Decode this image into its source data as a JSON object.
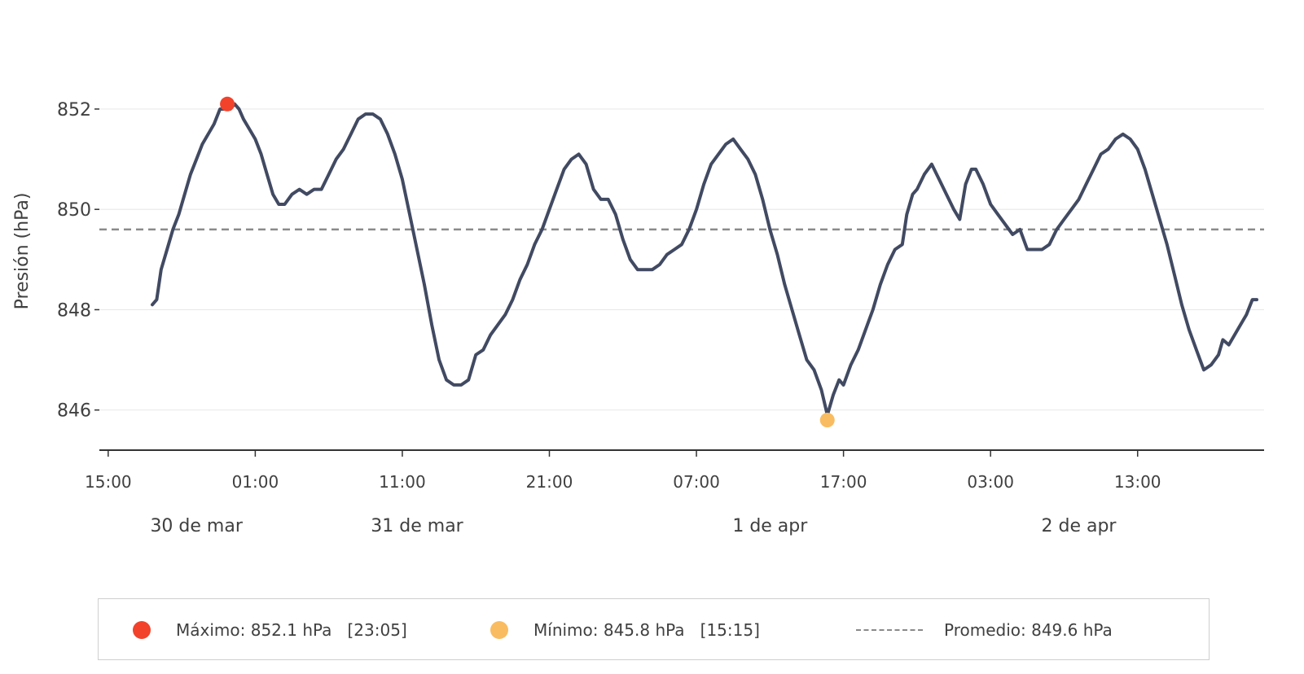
{
  "chart_data": {
    "type": "line",
    "ylabel": "Presión (hPa)",
    "ylim": [
      845.2,
      853.2
    ],
    "yticks": [
      "846",
      "848",
      "850",
      "852"
    ],
    "xticks": [
      "15:00",
      "01:00",
      "11:00",
      "21:00",
      "07:00",
      "17:00",
      "03:00",
      "13:00"
    ],
    "date_labels": [
      {
        "label": "30 de mar",
        "hour": 6
      },
      {
        "label": "31 de mar",
        "hour": 21
      },
      {
        "label": "1 de apr",
        "hour": 45
      },
      {
        "label": "2 de apr",
        "hour": 66
      }
    ],
    "x_unit": "hours since 30 de mar 15:00",
    "xlim": [
      -0.6,
      78.6
    ],
    "grid": "horizontal",
    "series": [
      {
        "color": "#414a62",
        "points": [
          [
            3,
            848.1
          ],
          [
            3.3,
            848.2
          ],
          [
            3.6,
            848.8
          ],
          [
            4,
            849.2
          ],
          [
            4.4,
            849.6
          ],
          [
            4.8,
            849.9
          ],
          [
            5.2,
            850.3
          ],
          [
            5.6,
            850.7
          ],
          [
            6,
            851.0
          ],
          [
            6.4,
            851.3
          ],
          [
            6.8,
            851.5
          ],
          [
            7.2,
            851.7
          ],
          [
            7.6,
            852.0
          ],
          [
            8,
            852.0
          ],
          [
            8.3,
            852.0
          ],
          [
            8.6,
            852.1
          ],
          [
            8.9,
            852.0
          ],
          [
            9.2,
            851.8
          ],
          [
            9.6,
            851.6
          ],
          [
            10,
            851.4
          ],
          [
            10.4,
            851.1
          ],
          [
            10.8,
            850.7
          ],
          [
            11.2,
            850.3
          ],
          [
            11.6,
            850.1
          ],
          [
            12,
            850.1
          ],
          [
            12.5,
            850.3
          ],
          [
            13,
            850.4
          ],
          [
            13.5,
            850.3
          ],
          [
            14,
            850.4
          ],
          [
            14.5,
            850.4
          ],
          [
            15,
            850.7
          ],
          [
            15.5,
            851.0
          ],
          [
            16,
            851.2
          ],
          [
            16.5,
            851.5
          ],
          [
            17,
            851.8
          ],
          [
            17.5,
            851.9
          ],
          [
            18,
            851.9
          ],
          [
            18.5,
            851.8
          ],
          [
            19,
            851.5
          ],
          [
            19.5,
            851.1
          ],
          [
            20,
            850.6
          ],
          [
            20.5,
            849.9
          ],
          [
            21,
            849.2
          ],
          [
            21.5,
            848.5
          ],
          [
            22,
            847.7
          ],
          [
            22.5,
            847.0
          ],
          [
            23,
            846.6
          ],
          [
            23.5,
            846.5
          ],
          [
            24,
            846.5
          ],
          [
            24.5,
            846.6
          ],
          [
            25,
            847.1
          ],
          [
            25.5,
            847.2
          ],
          [
            26,
            847.5
          ],
          [
            26.5,
            847.7
          ],
          [
            27,
            847.9
          ],
          [
            27.5,
            848.2
          ],
          [
            28,
            848.6
          ],
          [
            28.5,
            848.9
          ],
          [
            29,
            849.3
          ],
          [
            29.5,
            849.6
          ],
          [
            30,
            850.0
          ],
          [
            30.5,
            850.4
          ],
          [
            31,
            850.8
          ],
          [
            31.5,
            851.0
          ],
          [
            32,
            851.1
          ],
          [
            32.5,
            850.9
          ],
          [
            33,
            850.4
          ],
          [
            33.5,
            850.2
          ],
          [
            34,
            850.2
          ],
          [
            34.5,
            849.9
          ],
          [
            35,
            849.4
          ],
          [
            35.5,
            849.0
          ],
          [
            36,
            848.8
          ],
          [
            36.5,
            848.8
          ],
          [
            37,
            848.8
          ],
          [
            37.5,
            848.9
          ],
          [
            38,
            849.1
          ],
          [
            38.5,
            849.2
          ],
          [
            39,
            849.3
          ],
          [
            39.5,
            849.6
          ],
          [
            40,
            850.0
          ],
          [
            40.5,
            850.5
          ],
          [
            41,
            850.9
          ],
          [
            41.5,
            851.1
          ],
          [
            42,
            851.3
          ],
          [
            42.5,
            851.4
          ],
          [
            43,
            851.2
          ],
          [
            43.5,
            851.0
          ],
          [
            44,
            850.7
          ],
          [
            44.5,
            850.2
          ],
          [
            45,
            849.6
          ],
          [
            45.5,
            849.1
          ],
          [
            46,
            848.5
          ],
          [
            46.5,
            848.0
          ],
          [
            47,
            847.5
          ],
          [
            47.5,
            847.0
          ],
          [
            48,
            846.8
          ],
          [
            48.5,
            846.4
          ],
          [
            48.9,
            845.9
          ],
          [
            49.3,
            846.3
          ],
          [
            49.7,
            846.6
          ],
          [
            50,
            846.5
          ],
          [
            50.5,
            846.9
          ],
          [
            51,
            847.2
          ],
          [
            51.5,
            847.6
          ],
          [
            52,
            848.0
          ],
          [
            52.5,
            848.5
          ],
          [
            53,
            848.9
          ],
          [
            53.5,
            849.2
          ],
          [
            54,
            849.3
          ],
          [
            54.3,
            849.9
          ],
          [
            54.7,
            850.3
          ],
          [
            55,
            850.4
          ],
          [
            55.5,
            850.7
          ],
          [
            56,
            850.9
          ],
          [
            56.5,
            850.6
          ],
          [
            57,
            850.3
          ],
          [
            57.5,
            850.0
          ],
          [
            57.9,
            849.8
          ],
          [
            58.3,
            850.5
          ],
          [
            58.7,
            850.8
          ],
          [
            59,
            850.8
          ],
          [
            59.5,
            850.5
          ],
          [
            60,
            850.1
          ],
          [
            60.5,
            849.9
          ],
          [
            61,
            849.7
          ],
          [
            61.5,
            849.5
          ],
          [
            62,
            849.6
          ],
          [
            62.5,
            849.2
          ],
          [
            63,
            849.2
          ],
          [
            63.5,
            849.2
          ],
          [
            64,
            849.3
          ],
          [
            64.5,
            849.6
          ],
          [
            65,
            849.8
          ],
          [
            65.5,
            850.0
          ],
          [
            66,
            850.2
          ],
          [
            66.5,
            850.5
          ],
          [
            67,
            850.8
          ],
          [
            67.5,
            851.1
          ],
          [
            68,
            851.2
          ],
          [
            68.5,
            851.4
          ],
          [
            69,
            851.5
          ],
          [
            69.5,
            851.4
          ],
          [
            70,
            851.2
          ],
          [
            70.5,
            850.8
          ],
          [
            71,
            850.3
          ],
          [
            71.5,
            849.8
          ],
          [
            72,
            849.3
          ],
          [
            72.5,
            848.7
          ],
          [
            73,
            848.1
          ],
          [
            73.5,
            847.6
          ],
          [
            74,
            847.2
          ],
          [
            74.5,
            846.8
          ],
          [
            75,
            846.9
          ],
          [
            75.5,
            847.1
          ],
          [
            75.8,
            847.4
          ],
          [
            76.2,
            847.3
          ],
          [
            76.6,
            847.5
          ],
          [
            77,
            847.7
          ],
          [
            77.4,
            847.9
          ],
          [
            77.8,
            848.2
          ],
          [
            78.1,
            848.2
          ]
        ]
      }
    ],
    "average": 849.6,
    "max_point": {
      "hour": 8.1,
      "value": 852.1,
      "color": "#f2422c"
    },
    "min_point": {
      "hour": 48.9,
      "value": 845.8,
      "color": "#f9bc60"
    }
  },
  "legend": {
    "max_label": "Máximo: 852.1 hPa   [23:05]",
    "min_label": "Mínimo: 845.8 hPa   [15:15]",
    "avg_label": "Promedio: 849.6 hPa"
  }
}
